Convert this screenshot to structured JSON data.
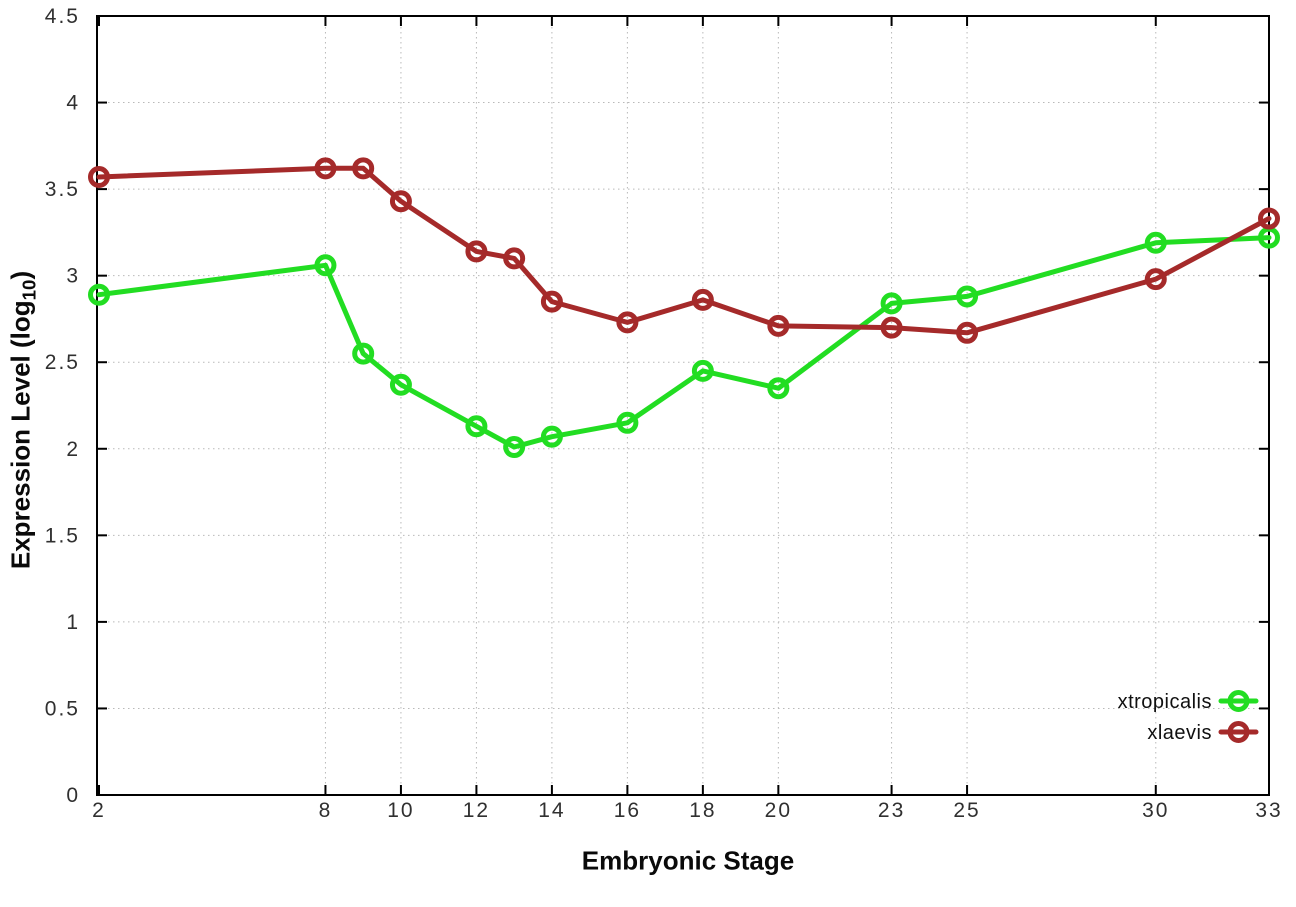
{
  "chart_data": {
    "type": "line",
    "title": "",
    "xlabel": "Embryonic Stage",
    "ylabel": "Expression Level (log10)",
    "ylabel_parts": {
      "main": "Expression Level (log",
      "sub": "10",
      "close": ")"
    },
    "xlim": [
      2,
      33
    ],
    "ylim": [
      0,
      4.5
    ],
    "grid": true,
    "legend_position": "inside-bottom-right",
    "x_ticks": [
      {
        "value": 2,
        "label": "2"
      },
      {
        "value": 8,
        "label": "8"
      },
      {
        "value": 10,
        "label": "10"
      },
      {
        "value": 12,
        "label": "12"
      },
      {
        "value": 14,
        "label": "14"
      },
      {
        "value": 16,
        "label": "16"
      },
      {
        "value": 18,
        "label": "18"
      },
      {
        "value": 20,
        "label": "20"
      },
      {
        "value": 23,
        "label": "23"
      },
      {
        "value": 25,
        "label": "25"
      },
      {
        "value": 30,
        "label": "30"
      },
      {
        "value": 33,
        "label": "33"
      }
    ],
    "y_ticks": [
      {
        "value": 0,
        "label": "0"
      },
      {
        "value": 0.5,
        "label": "0.5"
      },
      {
        "value": 1,
        "label": "1"
      },
      {
        "value": 1.5,
        "label": "1.5"
      },
      {
        "value": 2,
        "label": "2"
      },
      {
        "value": 2.5,
        "label": "2.5"
      },
      {
        "value": 3,
        "label": "3"
      },
      {
        "value": 3.5,
        "label": "3.5"
      },
      {
        "value": 4,
        "label": "4"
      },
      {
        "value": 4.5,
        "label": "4.5"
      }
    ],
    "stages": [
      2,
      8,
      9,
      10,
      12,
      13,
      14,
      16,
      18,
      20,
      23,
      25,
      30,
      33
    ],
    "series": [
      {
        "name": "xtropicalis",
        "color": "#22dd22",
        "marker": "open-circle",
        "values": [
          2.89,
          3.06,
          2.55,
          2.37,
          2.13,
          2.01,
          2.07,
          2.15,
          2.45,
          2.35,
          2.84,
          2.88,
          3.19,
          3.22
        ]
      },
      {
        "name": "xlaevis",
        "color": "#a52a2a",
        "marker": "open-circle",
        "values": [
          3.57,
          3.62,
          3.62,
          3.43,
          3.14,
          3.1,
          2.85,
          2.73,
          2.86,
          2.71,
          2.7,
          2.67,
          2.98,
          3.33
        ]
      }
    ],
    "style_colors": {
      "axis": "#000000",
      "grid": "#b9b9b9",
      "tick_text": "#303030"
    }
  }
}
